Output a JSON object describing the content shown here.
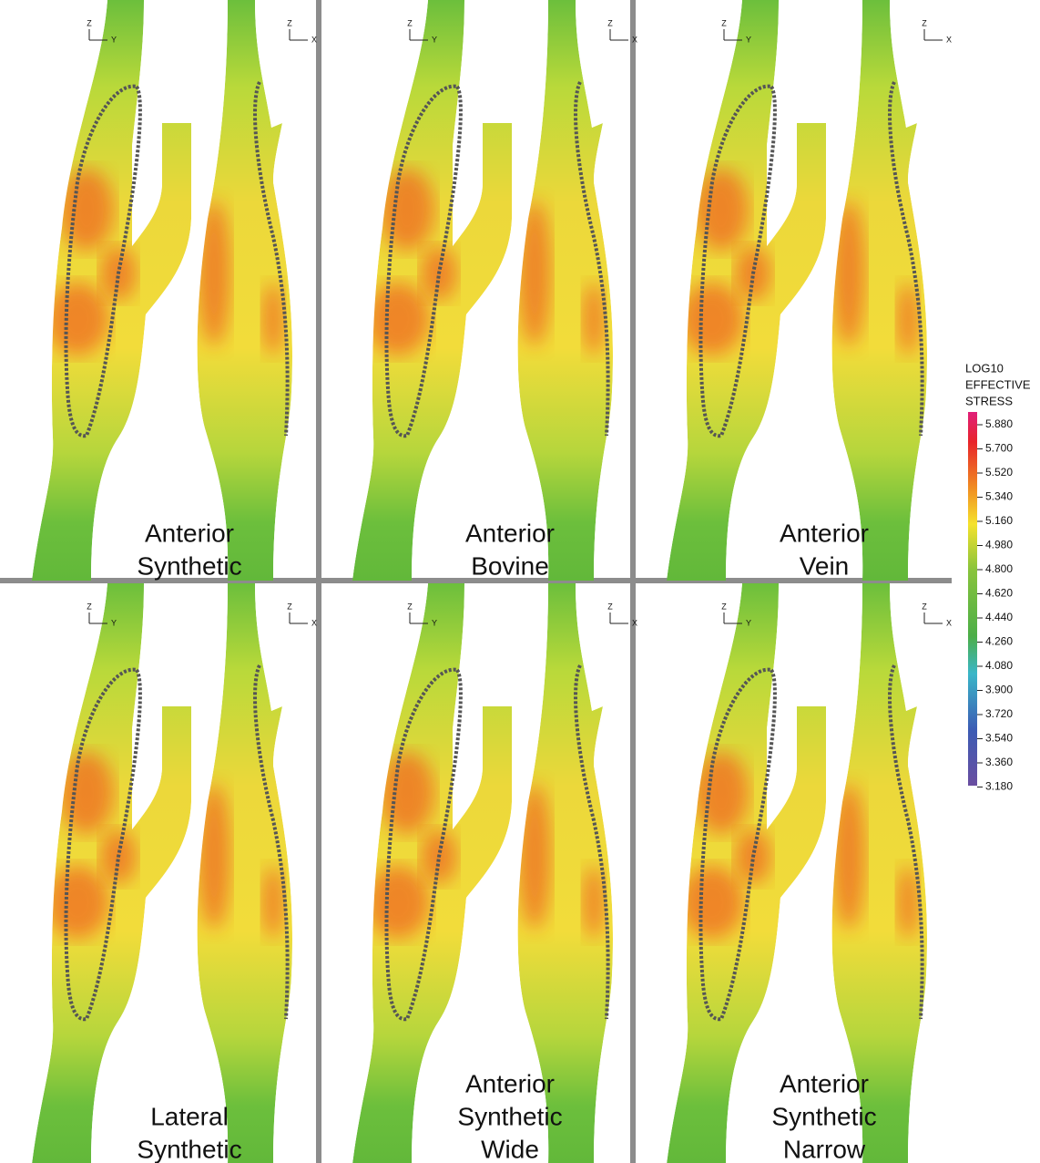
{
  "panels": [
    {
      "label": [
        "Anterior",
        "Synthetic"
      ],
      "axes": [
        {
          "vertical": "Z",
          "horizontal": "Y"
        },
        {
          "vertical": "Z",
          "horizontal": "X"
        }
      ]
    },
    {
      "label": [
        "Anterior",
        "Bovine"
      ],
      "axes": [
        {
          "vertical": "Z",
          "horizontal": "Y"
        },
        {
          "vertical": "Z",
          "horizontal": "X"
        }
      ]
    },
    {
      "label": [
        "Anterior",
        "Vein"
      ],
      "axes": [
        {
          "vertical": "Z",
          "horizontal": "Y"
        },
        {
          "vertical": "Z",
          "horizontal": "X"
        }
      ]
    },
    {
      "label": [
        "Lateral",
        "Synthetic"
      ],
      "axes": [
        {
          "vertical": "Z",
          "horizontal": "Y"
        },
        {
          "vertical": "Z",
          "horizontal": "X"
        }
      ]
    },
    {
      "label": [
        "Anterior",
        "Synthetic",
        "Wide"
      ],
      "axes": [
        {
          "vertical": "Z",
          "horizontal": "Y"
        },
        {
          "vertical": "Z",
          "horizontal": "X"
        }
      ]
    },
    {
      "label": [
        "Anterior",
        "Synthetic",
        "Narrow"
      ],
      "axes": [
        {
          "vertical": "Z",
          "horizontal": "Y"
        },
        {
          "vertical": "Z",
          "horizontal": "X"
        }
      ]
    }
  ],
  "colorbar": {
    "title": [
      "LOG10",
      "EFFECTIVE",
      "STRESS"
    ],
    "ticks": [
      "5.880",
      "5.700",
      "5.520",
      "5.340",
      "5.160",
      "4.980",
      "4.800",
      "4.620",
      "4.440",
      "4.260",
      "4.080",
      "3.900",
      "3.720",
      "3.540",
      "3.360",
      "3.180"
    ]
  }
}
